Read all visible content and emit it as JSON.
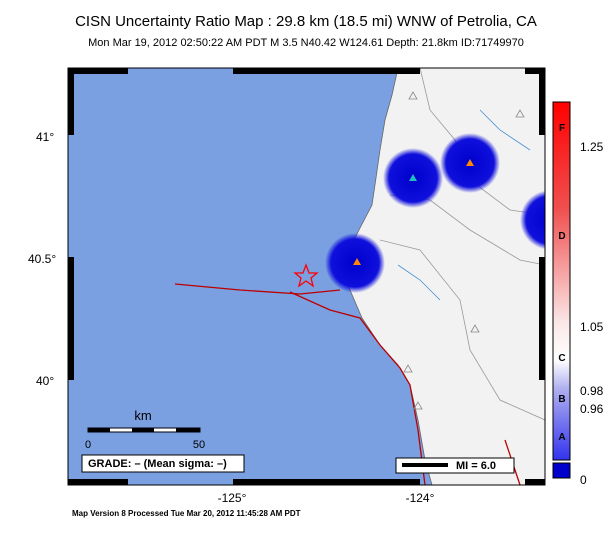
{
  "header": {
    "title": "CISN Uncertainty Ratio Map : 29.8 km (18.5 mi) WNW of Petrolia, CA",
    "subtitle": "Mon Mar 19, 2012 02:50:22 AM PDT   M 3.5   N40.42 W124.61   Depth: 21.8km   ID:71749970"
  },
  "map": {
    "lat_labels": [
      "41°",
      "40.5°",
      "40°"
    ],
    "lon_labels": [
      "-125°",
      "-124°"
    ]
  },
  "colorbar": {
    "grades": [
      "F",
      "D",
      "C",
      "B",
      "A"
    ],
    "ratios": [
      "1.25",
      "1.05",
      "0.98",
      "0.96",
      "0"
    ]
  },
  "scale": {
    "unit": "km",
    "labels": [
      "0",
      "50"
    ]
  },
  "grade_box": "GRADE: – (Mean sigma: –)",
  "mi_legend": "MI = 6.0",
  "footer": "Map Version 8 Processed Tue Mar 20, 2012 11:45:28 AM PDT"
}
